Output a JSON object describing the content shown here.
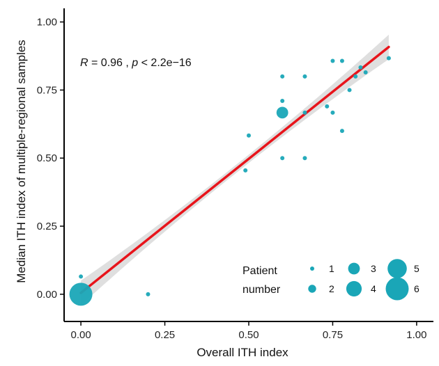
{
  "chart_data": {
    "type": "scatter",
    "xlabel": "Overall ITH index",
    "ylabel": "Median ITH index of multiple-regional samples",
    "xlim": [
      -0.05,
      1.05
    ],
    "ylim": [
      -0.1,
      1.05
    ],
    "x_ticks": [
      "0.00",
      "0.25",
      "0.50",
      "0.75",
      "1.00"
    ],
    "x_tick_values": [
      0,
      0.25,
      0.5,
      0.75,
      1.0
    ],
    "y_ticks": [
      "0.00",
      "0.25",
      "0.50",
      "0.75",
      "1.00"
    ],
    "y_tick_values": [
      0,
      0.25,
      0.5,
      0.75,
      1.0
    ],
    "annotation": {
      "r_symbol": "R",
      "r_value": " = 0.96 , ",
      "p_symbol": "p",
      "p_value": " < 2.2e−16"
    },
    "points": [
      {
        "x": 0.0,
        "y": 0.0,
        "size": 6
      },
      {
        "x": 0.0,
        "y": 0.065,
        "size": 1
      },
      {
        "x": 0.2,
        "y": 0.0,
        "size": 1
      },
      {
        "x": 0.49,
        "y": 0.455,
        "size": 1
      },
      {
        "x": 0.5,
        "y": 0.583,
        "size": 1
      },
      {
        "x": 0.6,
        "y": 0.5,
        "size": 1
      },
      {
        "x": 0.6,
        "y": 0.667,
        "size": 3
      },
      {
        "x": 0.6,
        "y": 0.71,
        "size": 1
      },
      {
        "x": 0.6,
        "y": 0.8,
        "size": 1
      },
      {
        "x": 0.667,
        "y": 0.5,
        "size": 1
      },
      {
        "x": 0.667,
        "y": 0.8,
        "size": 1
      },
      {
        "x": 0.667,
        "y": 0.667,
        "size": 1
      },
      {
        "x": 0.733,
        "y": 0.69,
        "size": 1
      },
      {
        "x": 0.75,
        "y": 0.667,
        "size": 1
      },
      {
        "x": 0.75,
        "y": 0.857,
        "size": 1
      },
      {
        "x": 0.778,
        "y": 0.6,
        "size": 1
      },
      {
        "x": 0.778,
        "y": 0.857,
        "size": 1
      },
      {
        "x": 0.8,
        "y": 0.75,
        "size": 1
      },
      {
        "x": 0.818,
        "y": 0.8,
        "size": 1
      },
      {
        "x": 0.833,
        "y": 0.833,
        "size": 1
      },
      {
        "x": 0.848,
        "y": 0.815,
        "size": 1
      },
      {
        "x": 0.917,
        "y": 0.867,
        "size": 1
      }
    ],
    "fit": {
      "intercept": 0.005,
      "slope": 0.985,
      "x_range": [
        0.0,
        0.917
      ],
      "ci_half_width_ends": 0.045,
      "ci_half_width_mid": 0.015
    },
    "legend": {
      "title_line1": "Patient",
      "title_line2": "number",
      "placement": "bottom-right",
      "items": [
        {
          "label": "1",
          "size": 1
        },
        {
          "label": "2",
          "size": 2
        },
        {
          "label": "3",
          "size": 3
        },
        {
          "label": "4",
          "size": 4
        },
        {
          "label": "5",
          "size": 5
        },
        {
          "label": "6",
          "size": 6
        }
      ]
    },
    "colors": {
      "point": "#1aa6b7",
      "line": "#e8141b",
      "ribbon": "#d9d9d9",
      "axis": "#000000"
    },
    "grid": false
  }
}
